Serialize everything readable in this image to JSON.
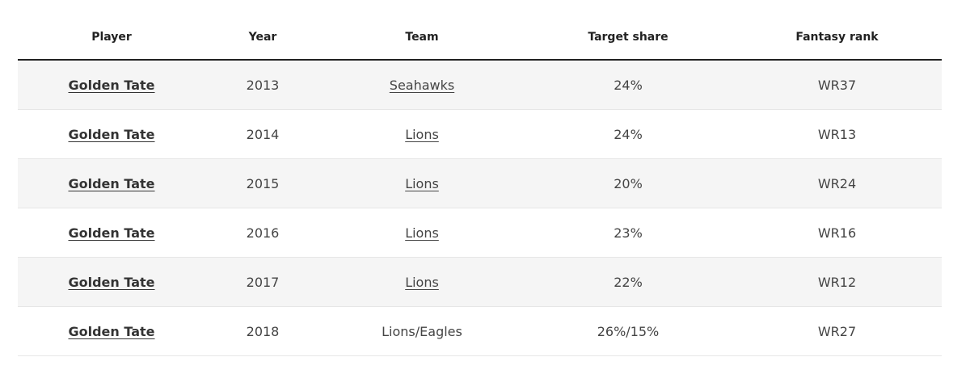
{
  "table": {
    "headers": {
      "player": "Player",
      "year": "Year",
      "team": "Team",
      "target_share": "Target share",
      "fantasy_rank": "Fantasy rank"
    },
    "rows": [
      {
        "player": "Golden Tate",
        "year": "2013",
        "team": "Seahawks",
        "team_is_link": true,
        "target_share": "24%",
        "fantasy_rank": "WR37"
      },
      {
        "player": "Golden Tate",
        "year": "2014",
        "team": "Lions",
        "team_is_link": true,
        "target_share": "24%",
        "fantasy_rank": "WR13"
      },
      {
        "player": "Golden Tate",
        "year": "2015",
        "team": "Lions",
        "team_is_link": true,
        "target_share": "20%",
        "fantasy_rank": "WR24"
      },
      {
        "player": "Golden Tate",
        "year": "2016",
        "team": "Lions",
        "team_is_link": true,
        "target_share": "23%",
        "fantasy_rank": "WR16"
      },
      {
        "player": "Golden Tate",
        "year": "2017",
        "team": "Lions",
        "team_is_link": true,
        "target_share": "22%",
        "fantasy_rank": "WR12"
      },
      {
        "player": "Golden Tate",
        "year": "2018",
        "team": "Lions/Eagles",
        "team_is_link": false,
        "target_share": "26%/15%",
        "fantasy_rank": "WR27"
      }
    ]
  }
}
